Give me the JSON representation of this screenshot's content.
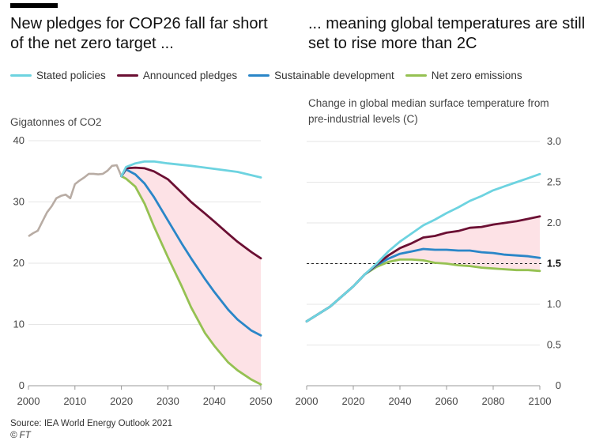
{
  "titles": {
    "left": "New pledges for COP26 fall far short of the net zero target ...",
    "right": "... meaning global temperatures are still set to rise more than 2C"
  },
  "legend": [
    {
      "label": "Stated policies",
      "color": "#6dd3e0"
    },
    {
      "label": "Announced pledges",
      "color": "#6b0f33"
    },
    {
      "label": "Sustainable development",
      "color": "#2a86c8"
    },
    {
      "label": "Net zero emissions",
      "color": "#95c152"
    }
  ],
  "colors": {
    "historical": "#b8aca4",
    "gap_fill": "#fde2e6",
    "grid": "#e6e6e6",
    "axis": "#999999"
  },
  "footer": {
    "source": "Source: IEA World Energy Outlook 2021",
    "copyright": "© FT"
  },
  "chart_data": [
    {
      "type": "line",
      "ylabel": "Gigatonnes of CO2",
      "xlim": [
        2000,
        2050
      ],
      "ylim": [
        0,
        40
      ],
      "xticks": [
        2000,
        2010,
        2020,
        2030,
        2040,
        2050
      ],
      "yticks": [
        0,
        10,
        20,
        30,
        40
      ],
      "grid": true,
      "fill_between": [
        "Announced pledges",
        "Net zero emissions"
      ],
      "historical": {
        "x": [
          2000,
          2001,
          2002,
          2003,
          2004,
          2005,
          2006,
          2007,
          2008,
          2009,
          2010,
          2011,
          2012,
          2013,
          2014,
          2015,
          2016,
          2017,
          2018,
          2019,
          2020
        ],
        "y": [
          24.4,
          24.9,
          25.3,
          26.8,
          28.3,
          29.3,
          30.6,
          31.0,
          31.2,
          30.6,
          32.9,
          33.5,
          34.0,
          34.6,
          34.6,
          34.5,
          34.6,
          35.1,
          35.9,
          36.0,
          34.2
        ]
      },
      "series": [
        {
          "name": "Stated policies",
          "x": [
            2020,
            2021,
            2023,
            2025,
            2027,
            2030,
            2035,
            2040,
            2045,
            2050
          ],
          "y": [
            34.2,
            35.7,
            36.3,
            36.6,
            36.6,
            36.3,
            35.9,
            35.4,
            34.9,
            34.0
          ]
        },
        {
          "name": "Announced pledges",
          "x": [
            2020,
            2021,
            2023,
            2025,
            2027,
            2030,
            2033,
            2035,
            2038,
            2040,
            2043,
            2045,
            2048,
            2050
          ],
          "y": [
            34.2,
            35.5,
            35.6,
            35.5,
            35.0,
            33.7,
            31.5,
            30.0,
            28.1,
            26.8,
            24.8,
            23.5,
            21.8,
            20.8
          ]
        },
        {
          "name": "Sustainable development",
          "x": [
            2020,
            2021,
            2023,
            2025,
            2027,
            2030,
            2033,
            2035,
            2038,
            2040,
            2043,
            2045,
            2048,
            2050
          ],
          "y": [
            34.2,
            35.3,
            34.5,
            33.0,
            30.8,
            27.0,
            23.2,
            20.8,
            17.4,
            15.3,
            12.4,
            10.8,
            9.0,
            8.2
          ]
        },
        {
          "name": "Net zero emissions",
          "x": [
            2020,
            2021,
            2023,
            2025,
            2027,
            2030,
            2033,
            2035,
            2038,
            2040,
            2043,
            2045,
            2048,
            2050
          ],
          "y": [
            34.2,
            33.8,
            32.5,
            29.7,
            26.0,
            21.0,
            16.2,
            12.8,
            8.6,
            6.5,
            3.8,
            2.5,
            1.0,
            0.2
          ]
        }
      ]
    },
    {
      "type": "line",
      "ylabel": "Change in global median surface temperature from pre-industrial levels (C)",
      "xlim": [
        2000,
        2100
      ],
      "ylim": [
        0,
        3
      ],
      "xticks": [
        2000,
        2020,
        2040,
        2060,
        2080,
        2100
      ],
      "yticks": [
        {
          "value": 0,
          "label": "0"
        },
        {
          "value": 0.5,
          "label": "0.5"
        },
        {
          "value": 1.0,
          "label": "1.0"
        },
        {
          "value": 1.5,
          "label": "1.5"
        },
        {
          "value": 2.0,
          "label": "2.0"
        },
        {
          "value": 2.5,
          "label": "2.5"
        },
        {
          "value": 3.0,
          "label": "3.0"
        }
      ],
      "reference_line": 1.5,
      "grid": true,
      "fill_between": [
        "Announced pledges",
        "Net zero emissions"
      ],
      "series": [
        {
          "name": "Stated policies",
          "x": [
            2000,
            2010,
            2020,
            2025,
            2030,
            2035,
            2040,
            2045,
            2050,
            2055,
            2060,
            2065,
            2070,
            2075,
            2080,
            2085,
            2090,
            2095,
            2100
          ],
          "y": [
            0.79,
            0.97,
            1.22,
            1.37,
            1.5,
            1.65,
            1.77,
            1.87,
            1.97,
            2.04,
            2.12,
            2.19,
            2.27,
            2.33,
            2.4,
            2.45,
            2.5,
            2.55,
            2.6
          ]
        },
        {
          "name": "Announced pledges",
          "x": [
            2000,
            2010,
            2020,
            2025,
            2030,
            2035,
            2040,
            2045,
            2050,
            2055,
            2060,
            2065,
            2070,
            2075,
            2080,
            2085,
            2090,
            2095,
            2100
          ],
          "y": [
            0.79,
            0.97,
            1.22,
            1.37,
            1.49,
            1.6,
            1.69,
            1.75,
            1.82,
            1.84,
            1.88,
            1.9,
            1.94,
            1.95,
            1.98,
            2.0,
            2.02,
            2.05,
            2.08
          ]
        },
        {
          "name": "Sustainable development",
          "x": [
            2000,
            2010,
            2020,
            2025,
            2030,
            2035,
            2040,
            2045,
            2050,
            2055,
            2060,
            2065,
            2070,
            2075,
            2080,
            2085,
            2090,
            2095,
            2100
          ],
          "y": [
            0.79,
            0.97,
            1.22,
            1.37,
            1.48,
            1.56,
            1.62,
            1.65,
            1.68,
            1.67,
            1.67,
            1.66,
            1.66,
            1.64,
            1.63,
            1.61,
            1.6,
            1.59,
            1.57
          ]
        },
        {
          "name": "Net zero emissions",
          "x": [
            2000,
            2010,
            2020,
            2025,
            2030,
            2035,
            2040,
            2045,
            2050,
            2055,
            2060,
            2065,
            2070,
            2075,
            2080,
            2085,
            2090,
            2095,
            2100
          ],
          "y": [
            0.79,
            0.97,
            1.22,
            1.37,
            1.46,
            1.52,
            1.55,
            1.55,
            1.54,
            1.51,
            1.5,
            1.48,
            1.47,
            1.45,
            1.44,
            1.43,
            1.42,
            1.42,
            1.41
          ]
        }
      ]
    }
  ]
}
